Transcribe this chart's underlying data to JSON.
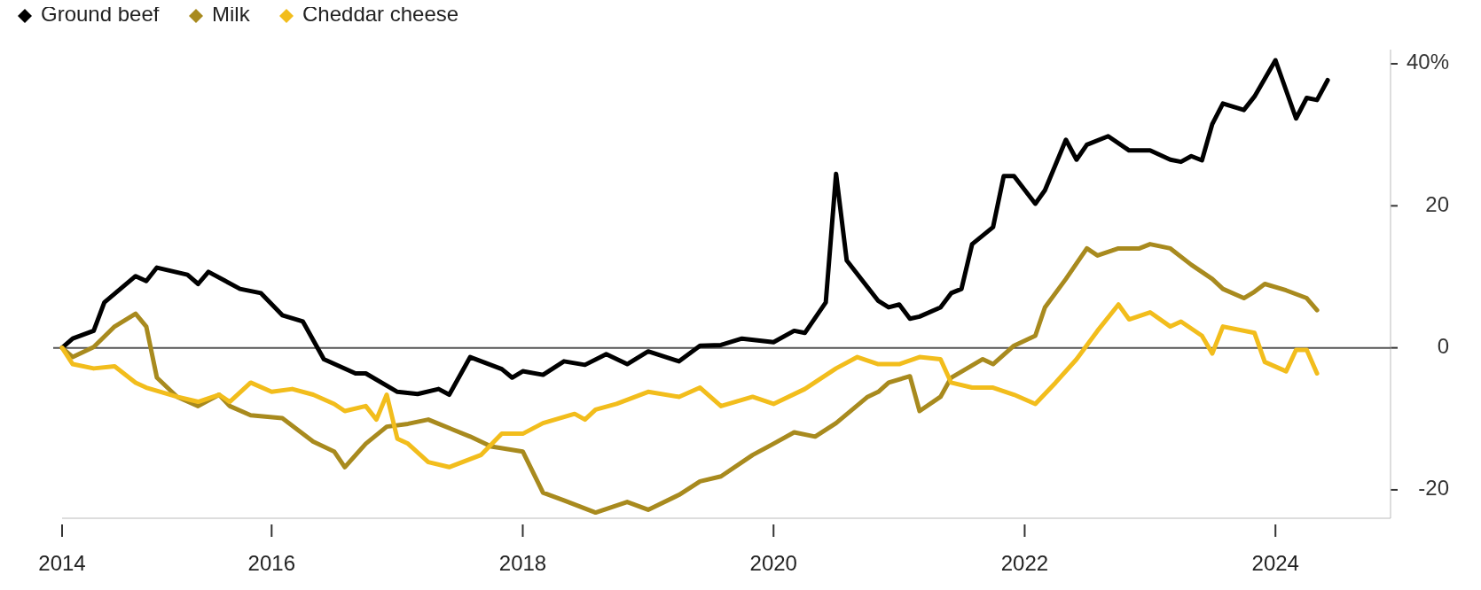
{
  "chart_data": {
    "type": "line",
    "xlim": [
      "2014-05",
      "2024-12"
    ],
    "ylim": [
      -24,
      42
    ],
    "xticks": [
      {
        "value": "2014-05",
        "label": "2014"
      },
      "2016",
      "2018",
      "2020",
      "2022",
      "2024"
    ],
    "yticks": [
      {
        "value": -20,
        "label": "-20"
      },
      0,
      20,
      {
        "value": 40,
        "label": "40%"
      }
    ],
    "ref_lines": [
      {
        "axis": "y",
        "value": 0,
        "color": "#555555"
      }
    ],
    "legend": "top left",
    "series": [
      {
        "name": "Ground beef",
        "color": "#000000",
        "x": [
          "2014-05",
          "2014-06",
          "2014-08",
          "2014-09",
          "2014-12",
          "2015-01",
          "2015-02",
          "2015-05",
          "2015-06",
          "2015-07",
          "2015-10",
          "2015-12",
          "2016-02",
          "2016-04",
          "2016-06",
          "2016-09",
          "2016-10",
          "2017-01",
          "2017-03",
          "2017-05",
          "2017-06",
          "2017-08",
          "2017-11",
          "2017-12",
          "2018-01",
          "2018-03",
          "2018-05",
          "2018-07",
          "2018-09",
          "2018-11",
          "2019-01",
          "2019-04",
          "2019-06",
          "2019-08",
          "2019-10",
          "2020-01",
          "2020-03",
          "2020-04",
          "2020-06",
          "2020-07",
          "2020-08",
          "2020-11",
          "2020-12",
          "2021-01",
          "2021-02",
          "2021-03",
          "2021-05",
          "2021-06",
          "2021-07",
          "2021-08",
          "2021-10",
          "2021-11",
          "2021-12",
          "2022-02",
          "2022-03",
          "2022-05",
          "2022-06",
          "2022-07",
          "2022-09",
          "2022-11",
          "2023-01",
          "2023-03",
          "2023-04",
          "2023-05",
          "2023-06",
          "2023-07",
          "2023-08",
          "2023-10",
          "2023-11",
          "2024-01",
          "2024-03",
          "2024-04",
          "2024-05",
          "2024-06"
        ],
        "values": [
          0,
          1.3,
          2.4,
          6.4,
          10.1,
          9.4,
          11.3,
          10.3,
          9,
          10.7,
          8.3,
          7.7,
          4.6,
          3.7,
          -1.6,
          -3.6,
          -3.6,
          -6.2,
          -6.5,
          -5.8,
          -6.6,
          -1.3,
          -3,
          -4.2,
          -3.3,
          -3.8,
          -1.9,
          -2.4,
          -0.9,
          -2.3,
          -0.5,
          -1.9,
          0.3,
          0.4,
          1.3,
          0.8,
          2.4,
          2.1,
          6.4,
          24.5,
          12.3,
          6.6,
          5.7,
          6.1,
          4.1,
          4.4,
          5.7,
          7.7,
          8.3,
          14.6,
          17,
          24.2,
          24.2,
          20.3,
          22.2,
          29.3,
          26.5,
          28.6,
          29.8,
          27.8,
          27.8,
          26.5,
          26.2,
          27,
          26.4,
          31.5,
          34.4,
          33.5,
          35.4,
          40.5,
          32.3,
          35.2,
          34.9,
          37.7
        ]
      },
      {
        "name": "Milk",
        "color": "#a88a1e",
        "x": [
          "2014-05",
          "2014-06",
          "2014-08",
          "2014-10",
          "2014-12",
          "2015-01",
          "2015-02",
          "2015-04",
          "2015-06",
          "2015-08",
          "2015-09",
          "2015-11",
          "2016-02",
          "2016-05",
          "2016-07",
          "2016-08",
          "2016-10",
          "2016-12",
          "2017-02",
          "2017-04",
          "2017-05",
          "2017-08",
          "2017-10",
          "2018-01",
          "2018-03",
          "2018-05",
          "2018-08",
          "2018-11",
          "2019-01",
          "2019-04",
          "2019-06",
          "2019-08",
          "2019-11",
          "2020-01",
          "2020-03",
          "2020-05",
          "2020-07",
          "2020-10",
          "2020-11",
          "2020-12",
          "2021-02",
          "2021-03",
          "2021-05",
          "2021-06",
          "2021-09",
          "2021-10",
          "2021-12",
          "2022-02",
          "2022-03",
          "2022-05",
          "2022-07",
          "2022-08",
          "2022-10",
          "2022-12",
          "2023-01",
          "2023-03",
          "2023-05",
          "2023-07",
          "2023-08",
          "2023-10",
          "2023-11",
          "2023-12",
          "2024-02",
          "2024-04",
          "2024-05"
        ],
        "values": [
          0,
          -1.3,
          0.1,
          3,
          4.8,
          3,
          -4.2,
          -6.9,
          -8.2,
          -6.6,
          -8.2,
          -9.5,
          -9.9,
          -13.2,
          -14.6,
          -16.8,
          -13.5,
          -11.1,
          -10.7,
          -10.1,
          -10.7,
          -12.5,
          -13.9,
          -14.6,
          -20.4,
          -21.5,
          -23.2,
          -21.7,
          -22.8,
          -20.7,
          -18.8,
          -18.1,
          -15.1,
          -13.5,
          -11.9,
          -12.5,
          -10.6,
          -6.9,
          -6.2,
          -4.9,
          -4,
          -8.9,
          -6.9,
          -4.2,
          -1.6,
          -2.3,
          0.3,
          1.7,
          5.7,
          9.7,
          14,
          13,
          14,
          14,
          14.6,
          14,
          11.7,
          9.7,
          8.3,
          7,
          7.9,
          9,
          8.1,
          7,
          5.3
        ]
      },
      {
        "name": "Cheddar cheese",
        "color": "#f2bd1c",
        "x": [
          "2014-05",
          "2014-06",
          "2014-08",
          "2014-10",
          "2014-12",
          "2015-01",
          "2015-04",
          "2015-06",
          "2015-08",
          "2015-09",
          "2015-11",
          "2016-01",
          "2016-03",
          "2016-05",
          "2016-07",
          "2016-08",
          "2016-10",
          "2016-11",
          "2016-12",
          "2017-01",
          "2017-02",
          "2017-04",
          "2017-06",
          "2017-09",
          "2017-11",
          "2018-01",
          "2018-03",
          "2018-06",
          "2018-07",
          "2018-08",
          "2018-10",
          "2019-01",
          "2019-04",
          "2019-06",
          "2019-08",
          "2019-11",
          "2020-01",
          "2020-04",
          "2020-07",
          "2020-09",
          "2020-11",
          "2021-01",
          "2021-03",
          "2021-05",
          "2021-06",
          "2021-08",
          "2021-10",
          "2021-12",
          "2022-02",
          "2022-04",
          "2022-06",
          "2022-08",
          "2022-10",
          "2022-11",
          "2023-01",
          "2023-03",
          "2023-04",
          "2023-06",
          "2023-07",
          "2023-08",
          "2023-11",
          "2023-12",
          "2024-02",
          "2024-03",
          "2024-04",
          "2024-05"
        ],
        "values": [
          0,
          -2.3,
          -2.9,
          -2.6,
          -4.9,
          -5.6,
          -6.9,
          -7.6,
          -6.6,
          -7.6,
          -4.9,
          -6.2,
          -5.8,
          -6.6,
          -7.9,
          -8.9,
          -8.2,
          -10.1,
          -6.6,
          -12.8,
          -13.5,
          -16.1,
          -16.8,
          -15.1,
          -12.1,
          -12.1,
          -10.6,
          -9.3,
          -10.1,
          -8.7,
          -7.9,
          -6.2,
          -6.9,
          -5.6,
          -8.2,
          -6.9,
          -7.9,
          -5.8,
          -2.9,
          -1.3,
          -2.3,
          -2.3,
          -1.3,
          -1.6,
          -4.9,
          -5.6,
          -5.6,
          -6.6,
          -7.9,
          -4.9,
          -1.6,
          2.4,
          6.1,
          4,
          5,
          3,
          3.7,
          1.7,
          -0.8,
          3,
          2.1,
          -2,
          -3.3,
          -0.3,
          -0.3,
          -3.6
        ]
      }
    ]
  }
}
